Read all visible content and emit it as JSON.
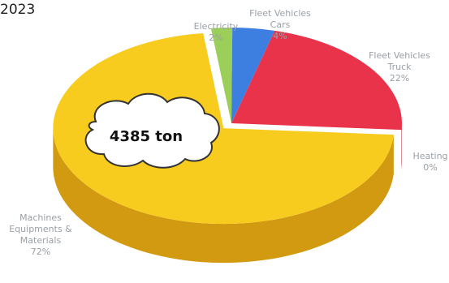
{
  "header": {
    "year": "2023"
  },
  "annotation": {
    "total": "4385 ton"
  },
  "colors": {
    "electricity": "#9ccf5a",
    "cars": "#3d7fe0",
    "trucks": "#e8334a",
    "heating": "#f2d32e",
    "machines": "#f7cc1e",
    "machines_side": "#d29a10",
    "trucks_side": "#b82236"
  },
  "chart_data": {
    "type": "pie",
    "title": "",
    "slices": [
      {
        "label_lines": [
          "Electricity",
          "2%"
        ],
        "value": 2,
        "color": "#9ccf5a"
      },
      {
        "label_lines": [
          "Fleet Vehicles",
          "Cars",
          "4%"
        ],
        "value": 4,
        "color": "#3d7fe0"
      },
      {
        "label_lines": [
          "Fleet Vehicles",
          "Truck",
          "22%"
        ],
        "value": 22,
        "color": "#e8334a"
      },
      {
        "label_lines": [
          "Heating",
          "0%"
        ],
        "value": 0,
        "color": "#f2d32e"
      },
      {
        "label_lines": [
          "Machines",
          "Equipments &",
          "Materials",
          "72%"
        ],
        "value": 72,
        "color": "#f7cc1e"
      }
    ],
    "style": "3d-exploded"
  }
}
